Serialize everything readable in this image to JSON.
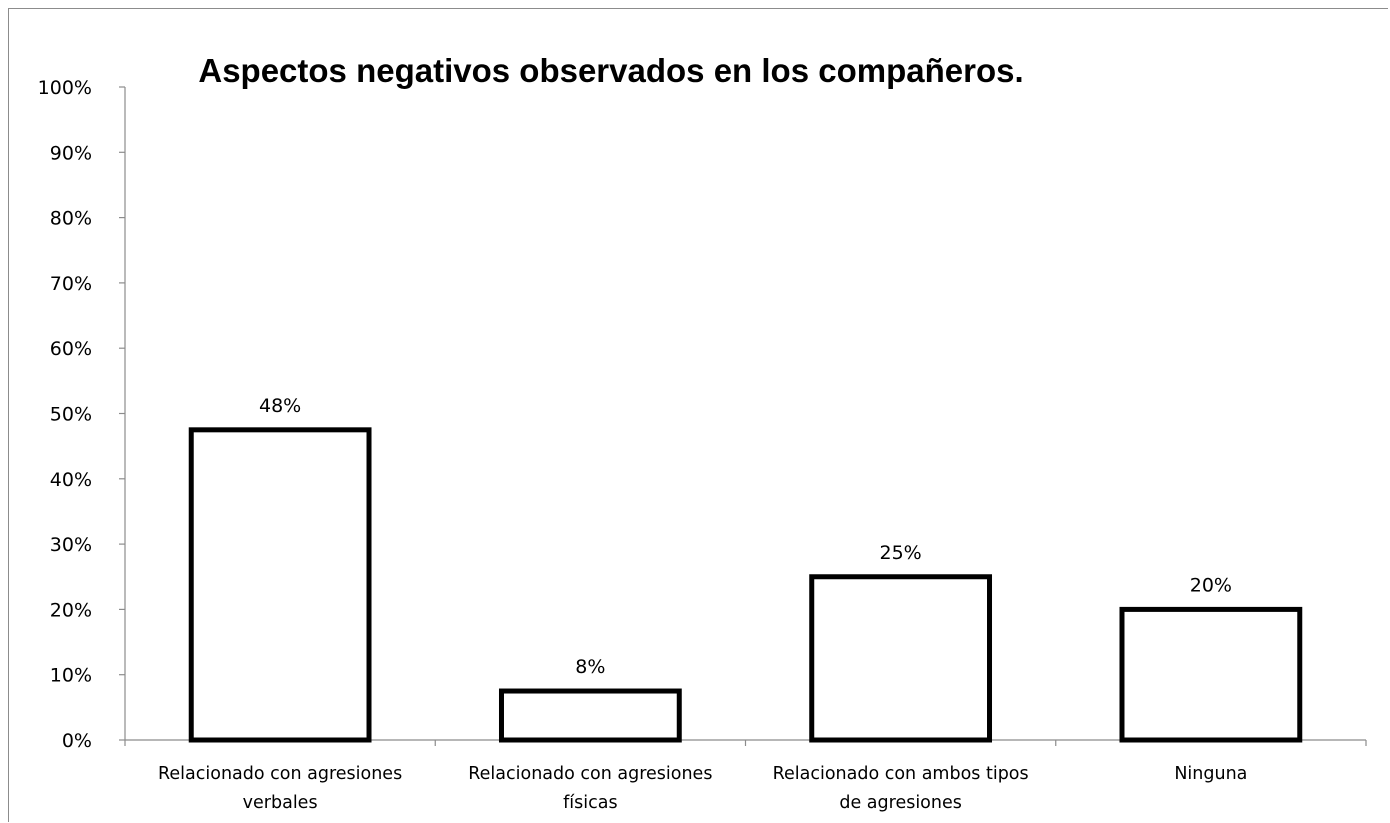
{
  "chart_data": {
    "type": "bar",
    "title": "Aspectos negativos observados en los compañeros.",
    "categories": [
      [
        "Relacionado con agresiones",
        "verbales"
      ],
      [
        "Relacionado con agresiones",
        "físicas"
      ],
      [
        "Relacionado con ambos tipos",
        "de agresiones"
      ],
      [
        "Ninguna"
      ]
    ],
    "values": [
      0.475,
      0.075,
      0.25,
      0.2
    ],
    "data_labels": [
      "48%",
      "8%",
      "25%",
      "20%"
    ],
    "y_ticks": [
      "0%",
      "10%",
      "20%",
      "30%",
      "40%",
      "50%",
      "60%",
      "70%",
      "80%",
      "90%",
      "100%"
    ],
    "ylim": [
      0,
      1
    ],
    "xlabel": "",
    "ylabel": "",
    "grid": false,
    "legend": "none",
    "colors": {
      "bar_fill": "#ffffff",
      "bar_stroke": "#000000",
      "axis": "#8c8c8c"
    }
  }
}
